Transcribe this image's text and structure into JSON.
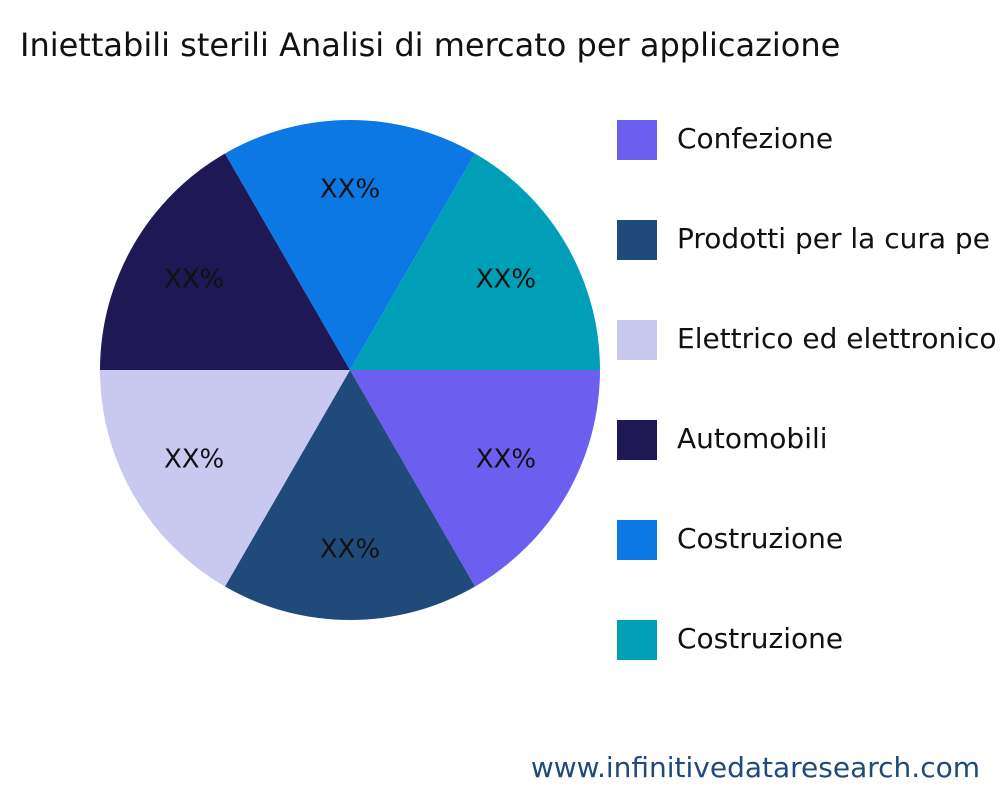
{
  "chart_data": {
    "type": "pie",
    "title": "Iniettabili sterili Analisi di mercato per applicazione",
    "categories": [
      "Confezione",
      "Prodotti per la cura pe",
      "Elettrico ed elettronico",
      "Automobili",
      "Costruzione",
      "Costruzione"
    ],
    "values": [
      16.67,
      16.67,
      16.67,
      16.67,
      16.67,
      16.67
    ],
    "value_labels": [
      "XX%",
      "XX%",
      "XX%",
      "XX%",
      "XX%",
      "XX%"
    ],
    "colors": [
      "#6c5ff0",
      "#1f4a7a",
      "#c8c8f0",
      "#1e1854",
      "#0b78e3",
      "#009fb8"
    ],
    "legend": "right",
    "footer": "www.infinitivedataresearch.com"
  }
}
